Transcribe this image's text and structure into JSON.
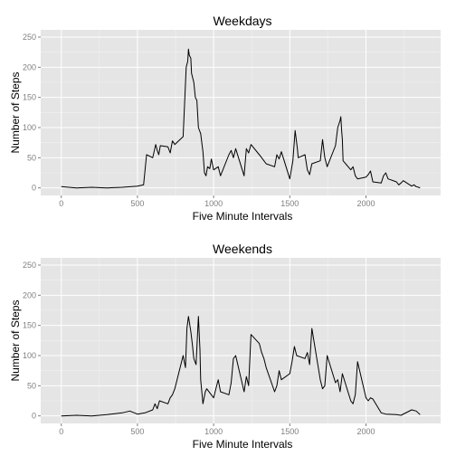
{
  "chart_data": [
    {
      "type": "line",
      "title": "Weekdays",
      "xlabel": "Five Minute Intervals",
      "ylabel": "Number of Steps",
      "xticks": [
        0,
        500,
        1000,
        1500,
        2000
      ],
      "yticks": [
        0,
        50,
        100,
        150,
        200,
        250
      ],
      "xlim": [
        -135,
        2490
      ],
      "ylim": [
        -12.5,
        262
      ],
      "grid": true,
      "x": [
        0,
        100,
        200,
        300,
        400,
        500,
        540,
        560,
        600,
        620,
        630,
        640,
        650,
        700,
        715,
        730,
        745,
        800,
        820,
        830,
        835,
        840,
        850,
        855,
        870,
        880,
        890,
        900,
        915,
        930,
        940,
        950,
        960,
        975,
        985,
        1000,
        1030,
        1045,
        1100,
        1115,
        1130,
        1145,
        1200,
        1215,
        1230,
        1245,
        1300,
        1315,
        1330,
        1345,
        1400,
        1415,
        1430,
        1445,
        1500,
        1520,
        1535,
        1550,
        1555,
        1600,
        1615,
        1630,
        1645,
        1700,
        1715,
        1730,
        1745,
        1800,
        1815,
        1830,
        1835,
        1840,
        1845,
        1850,
        1900,
        1915,
        1930,
        1945,
        2000,
        2015,
        2030,
        2045,
        2100,
        2115,
        2130,
        2145,
        2200,
        2215,
        2230,
        2245,
        2300,
        2315,
        2330,
        2345,
        2355
      ],
      "y": [
        2,
        0,
        1,
        0,
        1,
        3,
        5,
        55,
        50,
        72,
        62,
        55,
        70,
        68,
        58,
        78,
        72,
        85,
        200,
        210,
        230,
        220,
        215,
        190,
        175,
        150,
        145,
        100,
        90,
        60,
        25,
        20,
        35,
        32,
        48,
        30,
        35,
        20,
        55,
        62,
        50,
        65,
        20,
        65,
        58,
        72,
        55,
        50,
        45,
        40,
        35,
        55,
        48,
        60,
        15,
        45,
        95,
        65,
        50,
        55,
        30,
        22,
        40,
        45,
        80,
        50,
        35,
        70,
        100,
        112,
        118,
        95,
        80,
        45,
        30,
        35,
        20,
        15,
        18,
        22,
        28,
        10,
        8,
        20,
        25,
        15,
        10,
        5,
        8,
        12,
        3,
        5,
        2,
        1,
        0
      ]
    },
    {
      "type": "line",
      "title": "Weekends",
      "xlabel": "Five Minute Intervals",
      "ylabel": "Number of Steps",
      "xticks": [
        0,
        500,
        1000,
        1500,
        2000
      ],
      "yticks": [
        0,
        50,
        100,
        150,
        200,
        250
      ],
      "xlim": [
        -135,
        2490
      ],
      "ylim": [
        -12.5,
        262
      ],
      "grid": true,
      "x": [
        0,
        100,
        200,
        300,
        400,
        450,
        500,
        550,
        600,
        615,
        630,
        645,
        700,
        715,
        730,
        745,
        800,
        815,
        825,
        835,
        850,
        860,
        870,
        885,
        900,
        910,
        915,
        930,
        945,
        955,
        1000,
        1015,
        1030,
        1045,
        1100,
        1115,
        1130,
        1145,
        1200,
        1215,
        1230,
        1245,
        1300,
        1315,
        1330,
        1345,
        1400,
        1415,
        1430,
        1445,
        1500,
        1515,
        1530,
        1545,
        1600,
        1615,
        1630,
        1645,
        1700,
        1715,
        1730,
        1745,
        1800,
        1815,
        1830,
        1845,
        1900,
        1915,
        1930,
        1945,
        2000,
        2015,
        2030,
        2045,
        2100,
        2130,
        2200,
        2230,
        2300,
        2330,
        2355
      ],
      "y": [
        0,
        1,
        0,
        2,
        5,
        8,
        3,
        5,
        10,
        20,
        12,
        25,
        20,
        30,
        35,
        45,
        100,
        80,
        145,
        165,
        140,
        120,
        95,
        85,
        165,
        110,
        60,
        20,
        40,
        45,
        30,
        45,
        60,
        40,
        35,
        55,
        95,
        100,
        40,
        65,
        50,
        135,
        120,
        105,
        95,
        80,
        40,
        50,
        75,
        60,
        70,
        90,
        115,
        100,
        95,
        105,
        85,
        145,
        60,
        45,
        50,
        100,
        55,
        60,
        40,
        70,
        25,
        20,
        35,
        90,
        30,
        25,
        30,
        28,
        5,
        3,
        2,
        1,
        10,
        8,
        2
      ]
    }
  ]
}
